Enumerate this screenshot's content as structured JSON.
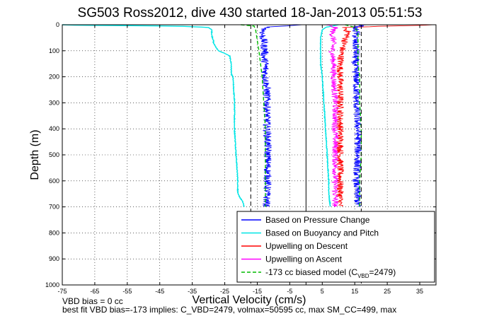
{
  "chart_data": {
    "type": "line",
    "title": "SG503 Ross2012, dive 430 started 18-Jan-2013 05:51:53",
    "xlabel": "Vertical Velocity (cm/s)",
    "ylabel": "Depth (m)",
    "xlim": [
      -75,
      40
    ],
    "ylim": [
      0,
      1000
    ],
    "y_reversed": true,
    "grid": true,
    "grid_style": "dotted",
    "x_ticks": [
      "-75",
      "-65",
      "-55",
      "-45",
      "-35",
      "-25",
      "-15",
      "-5",
      "5",
      "15",
      "25",
      "35"
    ],
    "x_tick_values": [
      -75,
      -65,
      -55,
      -45,
      -35,
      -25,
      -15,
      -5,
      5,
      15,
      25,
      35
    ],
    "y_ticks": [
      "0",
      "100",
      "200",
      "300",
      "400",
      "500",
      "600",
      "700",
      "800",
      "900",
      "1000"
    ],
    "y_tick_values": [
      0,
      100,
      200,
      300,
      400,
      500,
      600,
      700,
      800,
      900,
      1000
    ],
    "legend_position": "bottom-right",
    "reference_lines": [
      {
        "x": 0,
        "style": "solid",
        "color": "#000000"
      },
      {
        "x": -17,
        "style": "dashed",
        "color": "#000000"
      },
      {
        "x": 17,
        "style": "dashed",
        "color": "#000000"
      }
    ],
    "series": [
      {
        "name": "Based on Pressure Change",
        "color": "#0000ff",
        "style": "solid",
        "depth": [
          0,
          10,
          20,
          40,
          60,
          80,
          100,
          120,
          150,
          200,
          250,
          300,
          350,
          400,
          450,
          500,
          550,
          600,
          650,
          700
        ],
        "velocity": [
          -2,
          -12,
          -13,
          -13.5,
          -13,
          -13,
          -12.5,
          -13,
          -12.5,
          -12.5,
          -12,
          -12,
          -12,
          -12,
          -11.8,
          -11.8,
          -11.8,
          -11.8,
          -12,
          -12.2
        ]
      },
      {
        "name": "Based on Buoyancy and Pitch",
        "color": "#00e5e5",
        "style": "solid",
        "depth": [
          0,
          2,
          5,
          10,
          20,
          40,
          60,
          70,
          80,
          100,
          110,
          120,
          150,
          190,
          200,
          300,
          400,
          500,
          600,
          650,
          680,
          700
        ],
        "velocity": [
          -75,
          -70,
          -40,
          -30,
          -29,
          -29,
          -28.5,
          -28.5,
          -28,
          -27,
          -25,
          -23.5,
          -23,
          -23,
          -22.5,
          -22,
          -22,
          -21.5,
          -21,
          -21,
          -19.5,
          -19
        ]
      },
      {
        "name": "Upwelling on Descent",
        "color": "#ff0000",
        "style": "solid",
        "depth": [
          0,
          10,
          30,
          60,
          100,
          150,
          200,
          300,
          400,
          500,
          600,
          700
        ],
        "velocity": [
          40,
          12,
          13,
          12,
          11,
          10.5,
          10.5,
          10.5,
          10.5,
          10.5,
          10.5,
          10.5
        ]
      },
      {
        "name": "Upwelling on Ascent",
        "color": "#ff00ff",
        "style": "solid",
        "depth": [
          0,
          10,
          30,
          60,
          100,
          150,
          200,
          300,
          400,
          500,
          600,
          700
        ],
        "velocity": [
          6,
          9,
          8,
          8.5,
          8,
          8.5,
          8.5,
          9,
          9,
          9,
          9,
          9
        ]
      },
      {
        "name": "-173 cc biased model (C",
        "name_subscript": "VBD",
        "name_suffix": "=2479)",
        "color": "#00bb00",
        "style": "dashed",
        "depth": [
          0,
          5,
          20,
          60,
          100,
          150,
          200,
          300,
          400,
          500,
          600,
          700
        ],
        "velocity": [
          -20,
          -16,
          -15.5,
          -15,
          -14.5,
          -14,
          -13.5,
          -13,
          -12.5,
          -12.5,
          -12.5,
          -12.5
        ]
      },
      {
        "color": "#00bb00",
        "style": "dashed",
        "depth": [
          0,
          10,
          30,
          100,
          150,
          200,
          300,
          400,
          500,
          600,
          700
        ],
        "velocity": [
          12,
          15,
          16,
          16,
          16,
          16.5,
          16.5,
          17,
          17,
          16.5,
          16.5
        ]
      },
      {
        "color": "#00e5e5",
        "style": "solid",
        "depth": [
          0,
          10,
          20,
          50,
          100,
          150,
          200,
          300,
          400,
          500,
          600,
          650,
          700
        ],
        "velocity": [
          10,
          6,
          5,
          4.5,
          4.5,
          4.5,
          5,
          5.5,
          6,
          6.5,
          7,
          7,
          7.5
        ]
      },
      {
        "color": "#0000ff",
        "style": "solid",
        "depth": [
          0,
          10,
          30,
          60,
          100,
          150,
          200,
          300,
          400,
          500,
          600,
          700
        ],
        "velocity": [
          18,
          15,
          15.5,
          15,
          15.5,
          15,
          15.5,
          15.5,
          16,
          16,
          15.5,
          16
        ]
      }
    ]
  },
  "notes": {
    "line1": "VBD bias = 0 cc",
    "line2": "best fit VBD bias=-173 implies: C_VBD=2479, volmax=50595 cc, max SM_CC=499, max"
  }
}
